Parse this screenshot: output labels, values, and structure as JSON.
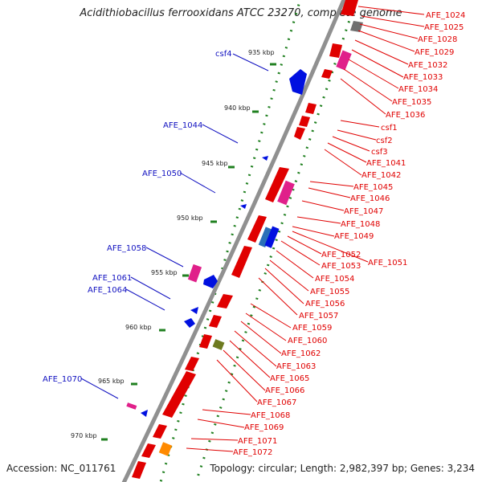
{
  "title": "Acidithiobacillus ferrooxidans ATCC 23270, complete genome",
  "accession": "Accession: NC_011761",
  "summary": "Topology: circular; Length: 2,982,397 bp; Genes: 3,234",
  "colors": {
    "backbone": "#909090",
    "forward_gene": "#e00000",
    "reverse_gene": "#0010e0",
    "rna": "#e0208a",
    "gc_dots": "#208020",
    "label_forward": "#e00000",
    "label_reverse": "#1010c0"
  },
  "kbp_ticks": [
    "935 kbp",
    "940 kbp",
    "945 kbp",
    "950 kbp",
    "955 kbp",
    "960 kbp",
    "965 kbp",
    "970 kbp"
  ],
  "reverse_labels": [
    "csf4",
    "AFE_1044",
    "AFE_1050",
    "AFE_1058",
    "AFE_1061",
    "AFE_1064",
    "AFE_1070"
  ],
  "forward_labels": [
    "AFE_1024",
    "AFE_1025",
    "AFE_1028",
    "AFE_1029",
    "AFE_1032",
    "AFE_1033",
    "AFE_1034",
    "AFE_1035",
    "AFE_1036",
    "csf1",
    "csf2",
    "csf3",
    "AFE_1041",
    "AFE_1042",
    "AFE_1045",
    "AFE_1046",
    "AFE_1047",
    "AFE_1048",
    "AFE_1049",
    "AFE_1052",
    "AFE_1051",
    "AFE_1053",
    "AFE_1054",
    "AFE_1055",
    "AFE_1056",
    "AFE_1057",
    "AFE_1059",
    "AFE_1060",
    "AFE_1062",
    "AFE_1063",
    "AFE_1065",
    "AFE_1066",
    "AFE_1067",
    "AFE_1068",
    "AFE_1069",
    "AFE_1071",
    "AFE_1072"
  ]
}
